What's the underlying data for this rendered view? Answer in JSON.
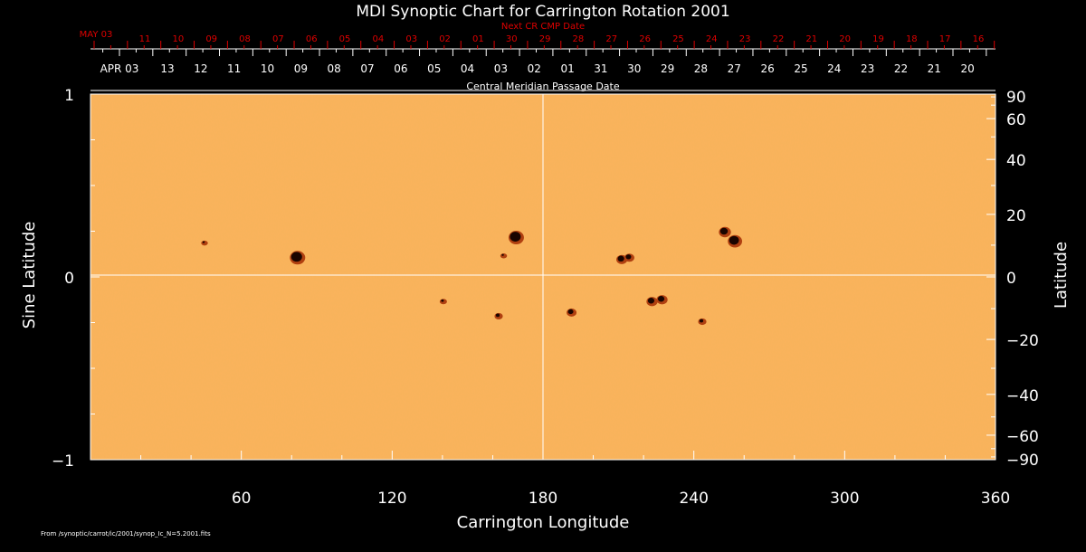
{
  "chart_data": {
    "type": "heatmap",
    "title": "MDI Synoptic Chart for Carrington Rotation 2001",
    "xlabel": "Carrington Longitude",
    "ylabel": "Sine Latitude",
    "y2label": "Latitude",
    "xlim": [
      0,
      360
    ],
    "ylim": [
      -1,
      1
    ],
    "x_ticks": [
      60,
      120,
      180,
      240,
      300,
      360
    ],
    "y_ticks": [
      {
        "v": 1,
        "label": "1"
      },
      {
        "v": 0,
        "label": "0"
      },
      {
        "v": -1,
        "label": "−1"
      }
    ],
    "y2_ticks": [
      90,
      60,
      40,
      20,
      0,
      -20,
      -40,
      -60,
      -90
    ],
    "y2_tick_labels": [
      "90",
      "60",
      "40",
      "20",
      "0",
      "−20",
      "−40",
      "−60",
      "−90"
    ],
    "cmp_axis_label": "Central Meridian Passage Date",
    "cmp_dates": [
      "APR 03",
      "13",
      "12",
      "11",
      "10",
      "09",
      "08",
      "07",
      "06",
      "05",
      "04",
      "03",
      "02",
      "01",
      "31",
      "30",
      "29",
      "28",
      "27",
      "26",
      "25",
      "24",
      "23",
      "22",
      "21",
      "20"
    ],
    "next_cmp_axis_label": "Next CR CMP Date",
    "next_cmp_dates": [
      "MAY 03",
      "11",
      "10",
      "09",
      "08",
      "07",
      "06",
      "05",
      "04",
      "03",
      "02",
      "01",
      "30",
      "29",
      "28",
      "27",
      "26",
      "25",
      "24",
      "23",
      "22",
      "21",
      "20",
      "19",
      "18",
      "17",
      "16"
    ],
    "colors": {
      "background": "#fbb35c",
      "spot": "#1a0500",
      "penumbra": "#b04010",
      "axis": "#ffffff",
      "next_axis": "#dd0000"
    },
    "sunspots": [
      {
        "lon": 82,
        "sinlat": 0.11,
        "size": 1.0
      },
      {
        "lon": 169,
        "sinlat": 0.22,
        "size": 1.0
      },
      {
        "lon": 211,
        "sinlat": 0.1,
        "size": 0.6
      },
      {
        "lon": 214,
        "sinlat": 0.11,
        "size": 0.5
      },
      {
        "lon": 252,
        "sinlat": 0.25,
        "size": 0.7
      },
      {
        "lon": 256,
        "sinlat": 0.2,
        "size": 0.9
      },
      {
        "lon": 223,
        "sinlat": -0.13,
        "size": 0.6
      },
      {
        "lon": 227,
        "sinlat": -0.12,
        "size": 0.6
      },
      {
        "lon": 191,
        "sinlat": -0.19,
        "size": 0.5
      },
      {
        "lon": 162,
        "sinlat": -0.21,
        "size": 0.35
      },
      {
        "lon": 243,
        "sinlat": -0.24,
        "size": 0.35
      },
      {
        "lon": 140,
        "sinlat": -0.13,
        "size": 0.25
      },
      {
        "lon": 45,
        "sinlat": 0.19,
        "size": 0.2
      },
      {
        "lon": 164,
        "sinlat": 0.12,
        "size": 0.2
      }
    ],
    "grid": false,
    "legend": "none"
  },
  "footer": {
    "source": "From  /synoptic/carrot/ic/2001/synop_Ic_N=5.2001.fits"
  }
}
